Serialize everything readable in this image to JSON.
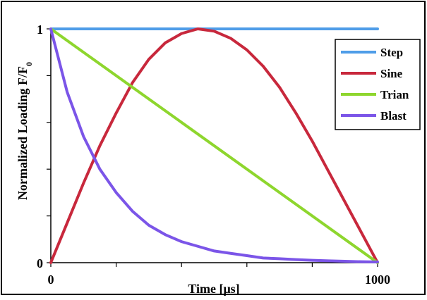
{
  "chart_data": {
    "type": "line",
    "title": "",
    "xlabel": "Time [μs]",
    "ylabel_main": "Normalized Loading F/F",
    "ylabel_sub": "0",
    "xlim": [
      0,
      1000
    ],
    "ylim": [
      0,
      1
    ],
    "x_tick_labels": [
      {
        "value": 0,
        "label": "0"
      },
      {
        "value": 1000,
        "label": "1000"
      }
    ],
    "x_minor_ticks": [
      0,
      200,
      400,
      600,
      800,
      1000
    ],
    "y_tick_labels": [
      {
        "value": 0,
        "label": "0"
      },
      {
        "value": 1,
        "label": "1"
      }
    ],
    "y_minor_ticks": [
      0,
      0.2,
      0.4,
      0.6,
      0.8,
      1
    ],
    "grid": false,
    "legend_position": "top-right",
    "series": [
      {
        "name": "Step",
        "color": "#4f9de8",
        "x": [
          0,
          1000
        ],
        "y": [
          1,
          1
        ]
      },
      {
        "name": "Sine",
        "color": "#c8283c",
        "x": [
          0,
          50,
          100,
          150,
          200,
          250,
          300,
          350,
          400,
          450,
          500,
          550,
          600,
          650,
          700,
          750,
          800,
          850,
          900,
          950,
          1000
        ],
        "y": [
          0,
          0.17,
          0.34,
          0.5,
          0.64,
          0.77,
          0.87,
          0.94,
          0.98,
          1.0,
          0.99,
          0.96,
          0.91,
          0.84,
          0.75,
          0.64,
          0.52,
          0.39,
          0.26,
          0.13,
          0
        ]
      },
      {
        "name": "Trian",
        "color": "#8ed62e",
        "x": [
          0,
          1000
        ],
        "y": [
          1,
          0
        ]
      },
      {
        "name": "Blast",
        "color": "#7b55e8",
        "x": [
          0,
          50,
          100,
          150,
          200,
          250,
          300,
          350,
          400,
          450,
          500,
          550,
          600,
          650,
          700,
          750,
          800,
          850,
          900,
          950,
          1000
        ],
        "y": [
          1,
          0.73,
          0.54,
          0.4,
          0.3,
          0.22,
          0.16,
          0.12,
          0.09,
          0.07,
          0.05,
          0.04,
          0.03,
          0.02,
          0.017,
          0.013,
          0.01,
          0.008,
          0.006,
          0.004,
          0.003
        ]
      }
    ]
  }
}
